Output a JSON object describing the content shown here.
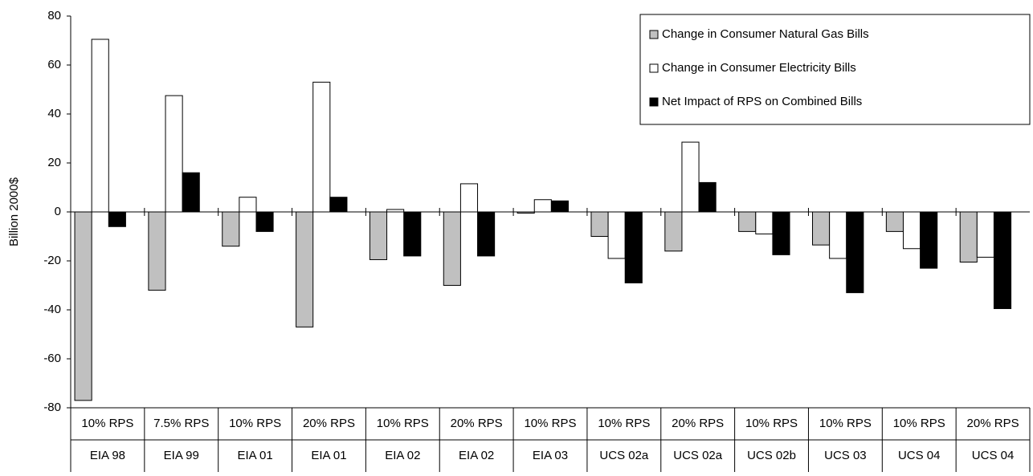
{
  "chart_data": {
    "type": "bar",
    "y_label": "Billion 2000$",
    "categories": [
      [
        "10% RPS",
        "EIA 98"
      ],
      [
        "7.5% RPS",
        "EIA 99"
      ],
      [
        "10% RPS",
        "EIA 01"
      ],
      [
        "20% RPS",
        "EIA 01"
      ],
      [
        "10% RPS",
        "EIA 02"
      ],
      [
        "20% RPS",
        "EIA 02"
      ],
      [
        "10% RPS",
        "EIA 03"
      ],
      [
        "10% RPS",
        "UCS 02a"
      ],
      [
        "20% RPS",
        "UCS 02a"
      ],
      [
        "10% RPS",
        "UCS 02b"
      ],
      [
        "10% RPS",
        "UCS 03"
      ],
      [
        "10% RPS",
        "UCS 04"
      ],
      [
        "20% RPS",
        "UCS 04"
      ]
    ],
    "series": [
      {
        "name": "Change in Consumer Natural Gas Bills",
        "color": "#c0c0c0",
        "values": [
          -77,
          -32,
          -14,
          -47,
          -19.5,
          -30,
          -0.5,
          -10,
          -16,
          -8,
          -13.5,
          -8,
          -20.5
        ]
      },
      {
        "name": "Change in Consumer Electricity Bills",
        "color": "#ffffff",
        "values": [
          70.5,
          47.5,
          6,
          53,
          1,
          11.5,
          5,
          -19,
          28.5,
          -9,
          -19,
          -15,
          -18.5
        ]
      },
      {
        "name": "Net Impact of RPS on Combined Bills",
        "color": "#000000",
        "values": [
          -6,
          16,
          -8,
          6,
          -18,
          -18,
          4.5,
          -29,
          12,
          -17.5,
          -33,
          -23,
          -39.5
        ]
      }
    ],
    "ylim": [
      -80,
      80
    ],
    "yticks": [
      -80,
      -60,
      -40,
      -20,
      0,
      20,
      40,
      60,
      80
    ],
    "grid": false,
    "legend": "upper right"
  }
}
